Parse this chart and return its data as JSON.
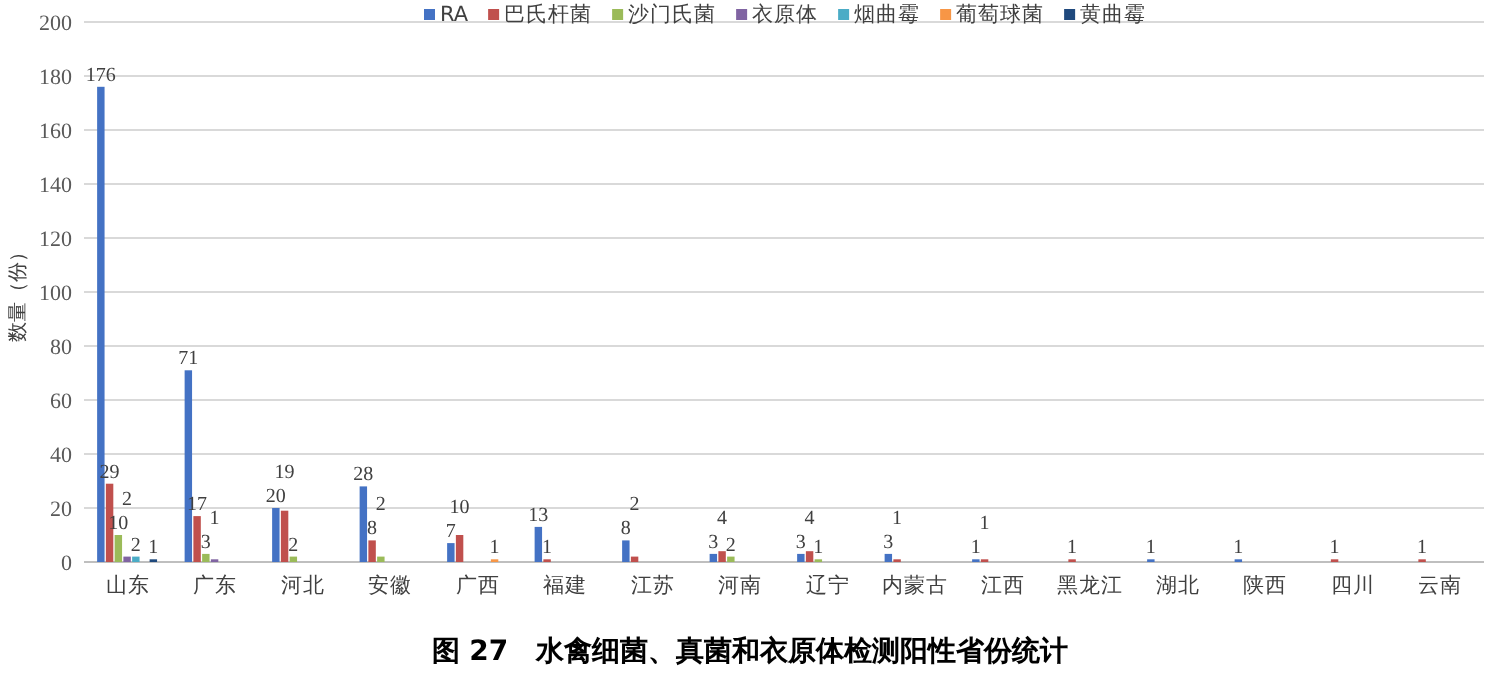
{
  "chart_data": {
    "type": "bar",
    "title": "图 27　水禽细菌、真菌和衣原体检测阳性省份统计",
    "ylabel": "数量（份）",
    "categories": [
      "山东",
      "广东",
      "河北",
      "安徽",
      "广西",
      "福建",
      "江苏",
      "河南",
      "辽宁",
      "内蒙古",
      "江西",
      "黑龙江",
      "湖北",
      "陕西",
      "四川",
      "云南"
    ],
    "series": [
      {
        "name": "RA",
        "color": "#4472c4",
        "values": [
          176,
          71,
          20,
          28,
          7,
          13,
          8,
          3,
          3,
          3,
          1,
          null,
          1,
          1,
          null,
          null
        ]
      },
      {
        "name": "巴氏杆菌",
        "color": "#c0504d",
        "values": [
          29,
          17,
          19,
          8,
          10,
          1,
          2,
          4,
          4,
          1,
          1,
          1,
          null,
          null,
          1,
          1
        ]
      },
      {
        "name": "沙门氏菌",
        "color": "#9bbb59",
        "values": [
          10,
          3,
          2,
          2,
          null,
          null,
          null,
          2,
          1,
          null,
          null,
          null,
          null,
          null,
          null,
          null
        ]
      },
      {
        "name": "衣原体",
        "color": "#8064a2",
        "values": [
          2,
          1,
          null,
          null,
          null,
          null,
          null,
          null,
          null,
          null,
          null,
          null,
          null,
          null,
          null,
          null
        ]
      },
      {
        "name": "烟曲霉",
        "color": "#4bacc6",
        "values": [
          2,
          null,
          null,
          null,
          null,
          null,
          null,
          null,
          null,
          null,
          null,
          null,
          null,
          null,
          null,
          null
        ]
      },
      {
        "name": "葡萄球菌",
        "color": "#f79646",
        "values": [
          null,
          null,
          null,
          null,
          1,
          null,
          null,
          null,
          null,
          null,
          null,
          null,
          null,
          null,
          null,
          null
        ]
      },
      {
        "name": "黄曲霉",
        "color": "#1f497d",
        "values": [
          1,
          null,
          null,
          null,
          null,
          null,
          null,
          null,
          null,
          null,
          null,
          null,
          null,
          null,
          null,
          null
        ]
      }
    ],
    "ylim": [
      0,
      200
    ],
    "yticks": [
      0,
      20,
      40,
      60,
      80,
      100,
      120,
      140,
      160,
      180,
      200
    ],
    "grid": "y",
    "legend": "top",
    "data_labels": true
  }
}
